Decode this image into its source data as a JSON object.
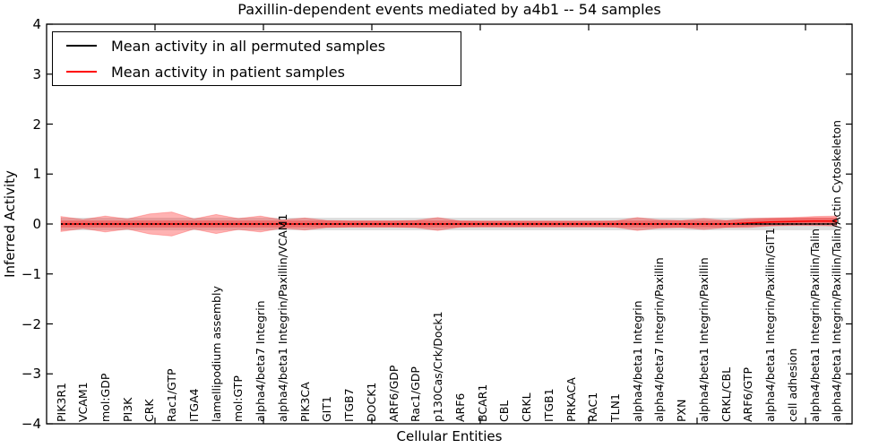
{
  "title": "Paxillin-dependent events mediated by a4b1 -- 54 samples",
  "axes": {
    "ylabel": "Inferred Activity",
    "xlabel": "Cellular Entities",
    "ytick_labels": [
      "4",
      "3",
      "2",
      "1",
      "0",
      "−1",
      "−2",
      "−3",
      "−4"
    ]
  },
  "legend": {
    "items": [
      {
        "label": "Mean activity in all permuted samples",
        "color": "#000000"
      },
      {
        "label": "Mean activity in patient samples",
        "color": "#ff0000"
      }
    ]
  },
  "colors": {
    "patient_line": "#ff0000",
    "permuted_line": "#000000",
    "patient_band_fill": "rgba(255,0,0,0.30)",
    "patient_band_edge": "rgba(255,0,0,0.22)",
    "permuted_band_fill": "rgba(0,0,0,0.13)",
    "background": "#ffffff",
    "frame": "#000000"
  },
  "chart_data": {
    "type": "line",
    "title": "Paxillin-dependent events mediated by a4b1 -- 54 samples",
    "xlabel": "Cellular Entities",
    "ylabel": "Inferred Activity",
    "ylim": [
      -4,
      4
    ],
    "yticks": [
      4,
      3,
      2,
      1,
      0,
      -1,
      -2,
      -3,
      -4
    ],
    "grid": false,
    "legend_position": "upper left",
    "categories": [
      "PIK3R1",
      "VCAM1",
      "mol:GDP",
      "PI3K",
      "CRK",
      "Rac1/GTP",
      "ITGA4",
      "lamellipodium assembly",
      "mol:GTP",
      "alpha4/beta7 Integrin",
      "alpha4/beta1 Integrin/Paxillin/VCAM1",
      "PIK3CA",
      "GIT1",
      "ITGB7",
      "DOCK1",
      "ARF6/GDP",
      "Rac1/GDP",
      "p130Cas/Crk/Dock1",
      "ARF6",
      "BCAR1",
      "CBL",
      "CRKL",
      "ITGB1",
      "PRKACA",
      "RAC1",
      "TLN1",
      "alpha4/beta1 Integrin",
      "alpha4/beta7 Integrin/Paxillin",
      "PXN",
      "alpha4/beta1 Integrin/Paxillin",
      "CRKL/CBL",
      "ARF6/GTP",
      "alpha4/beta1 Integrin/Paxillin/GIT1",
      "cell adhesion",
      "alpha4/beta1 Integrin/Paxillin/Talin",
      "alpha4/beta1 Integrin/Paxillin/Talin/Actin Cytoskeleton"
    ],
    "series": [
      {
        "name": "Mean activity in all permuted samples",
        "color": "#000000",
        "line_style": "solid-with-dotted-overlay",
        "values": [
          0,
          0,
          0,
          0,
          0,
          0,
          0,
          0,
          0,
          0,
          0,
          0,
          0,
          0,
          0,
          0,
          0,
          0,
          0,
          0,
          0,
          0,
          0,
          0,
          0,
          0,
          0,
          0,
          0,
          0,
          0,
          0,
          0,
          0,
          0,
          0
        ],
        "band_halfwidth": 0.125
      },
      {
        "name": "Mean activity in patient samples",
        "color": "#ff0000",
        "line_style": "solid",
        "values": [
          0,
          0,
          0,
          0,
          0,
          0,
          0,
          0,
          0,
          0,
          0,
          0,
          0,
          0,
          0,
          0,
          0,
          0,
          0,
          0,
          0,
          0,
          0,
          0,
          0,
          0,
          0,
          0,
          0,
          0,
          0,
          0.02,
          0.04,
          0.05,
          0.06,
          0.06
        ],
        "band_halfwidth": [
          0.15,
          0.09,
          0.16,
          0.1,
          0.2,
          0.24,
          0.1,
          0.19,
          0.11,
          0.16,
          0.08,
          0.12,
          0.07,
          0.06,
          0.06,
          0.06,
          0.07,
          0.13,
          0.06,
          0.05,
          0.05,
          0.05,
          0.05,
          0.05,
          0.05,
          0.06,
          0.13,
          0.08,
          0.07,
          0.11,
          0.07,
          0.09,
          0.08,
          0.08,
          0.09,
          0.1
        ],
        "inner_band_halfwidth": 0.07
      }
    ]
  }
}
